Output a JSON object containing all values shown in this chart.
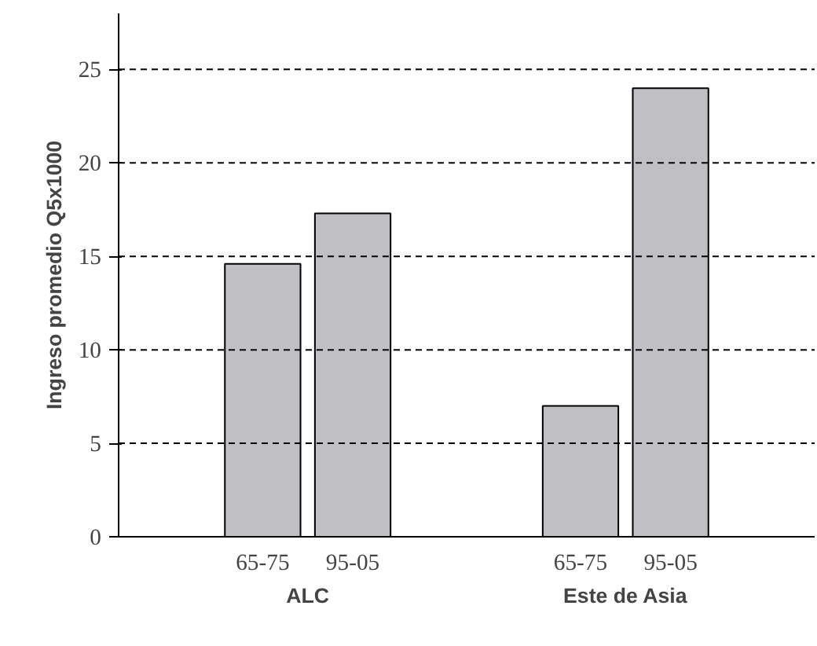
{
  "chart_data": {
    "type": "bar",
    "categories": [
      "65-75",
      "95-05",
      "65-75",
      "95-05"
    ],
    "values": [
      14.6,
      17.3,
      7.0,
      24.0
    ],
    "color": "#c0c0c4",
    "ylabel": "Ingreso promedio Q5x1000",
    "ylim": [
      0,
      28
    ],
    "yticks": [
      0,
      5,
      10,
      15,
      20,
      25
    ],
    "grid": "y",
    "annotations": [
      "ALC",
      "Este de Asia"
    ]
  }
}
